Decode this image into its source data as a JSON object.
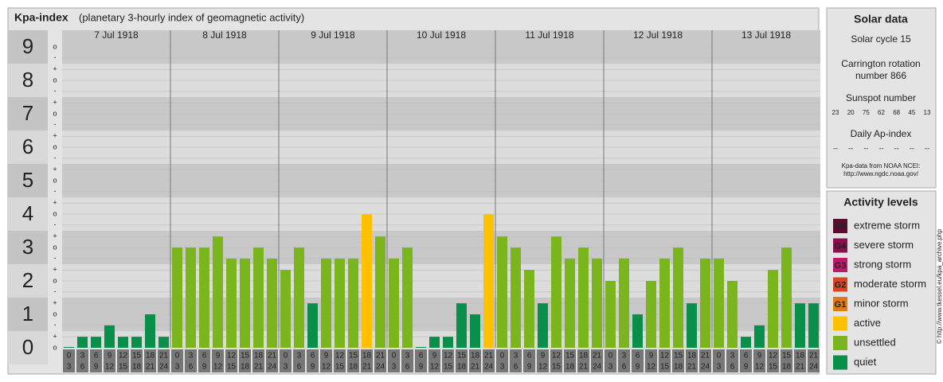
{
  "chart_data": {
    "type": "bar",
    "title": "Kpa-index",
    "subtitle": "(planetary 3-hourly index of geomagnetic activity)",
    "days": [
      "7 Jul 1918",
      "8 Jul 1918",
      "9 Jul 1918",
      "10 Jul 1918",
      "11 Jul 1918",
      "12 Jul 1918",
      "13 Jul 1918"
    ],
    "slots": [
      [
        0,
        3
      ],
      [
        3,
        6
      ],
      [
        6,
        9
      ],
      [
        9,
        12
      ],
      [
        12,
        15
      ],
      [
        15,
        18
      ],
      [
        18,
        21
      ],
      [
        21,
        24
      ]
    ],
    "values": [
      [
        0,
        0.33,
        0.33,
        0.67,
        0.33,
        0.33,
        1,
        0.33
      ],
      [
        3,
        3,
        3,
        3.33,
        2.67,
        2.67,
        3,
        2.67
      ],
      [
        2.33,
        3,
        1.33,
        2.67,
        2.67,
        2.67,
        4,
        3.33
      ],
      [
        2.67,
        3,
        0,
        0.33,
        0.33,
        1.33,
        1,
        4
      ],
      [
        3.33,
        3,
        2.33,
        1.33,
        3.33,
        2.67,
        3,
        2.67
      ],
      [
        2,
        2.67,
        1,
        2,
        2.67,
        3,
        1.33,
        2.67
      ],
      [
        2.67,
        2,
        0.33,
        0.67,
        2.33,
        3,
        1.33,
        1.33
      ]
    ],
    "colors": [
      [
        "#0a8f4a",
        "#0a8f4a",
        "#0a8f4a",
        "#0a8f4a",
        "#0a8f4a",
        "#0a8f4a",
        "#0a8f4a",
        "#0a8f4a"
      ],
      [
        "#7ab51d",
        "#7ab51d",
        "#7ab51d",
        "#7ab51d",
        "#7ab51d",
        "#7ab51d",
        "#7ab51d",
        "#7ab51d"
      ],
      [
        "#7ab51d",
        "#7ab51d",
        "#0a8f4a",
        "#7ab51d",
        "#7ab51d",
        "#7ab51d",
        "#ffc000",
        "#7ab51d"
      ],
      [
        "#7ab51d",
        "#7ab51d",
        "#0a8f4a",
        "#0a8f4a",
        "#0a8f4a",
        "#0a8f4a",
        "#0a8f4a",
        "#ffc000"
      ],
      [
        "#7ab51d",
        "#7ab51d",
        "#7ab51d",
        "#0a8f4a",
        "#7ab51d",
        "#7ab51d",
        "#7ab51d",
        "#7ab51d"
      ],
      [
        "#7ab51d",
        "#7ab51d",
        "#0a8f4a",
        "#7ab51d",
        "#7ab51d",
        "#7ab51d",
        "#0a8f4a",
        "#7ab51d"
      ],
      [
        "#7ab51d",
        "#7ab51d",
        "#0a8f4a",
        "#0a8f4a",
        "#7ab51d",
        "#7ab51d",
        "#0a8f4a",
        "#0a8f4a"
      ]
    ],
    "ylim": [
      0,
      9
    ],
    "yticks": [
      0,
      1,
      2,
      3,
      4,
      5,
      6,
      7,
      8,
      9
    ],
    "minor_ticks": [
      {
        "value": 0,
        "label": "o"
      },
      {
        "value": 0.33,
        "label": "+"
      },
      {
        "value": 0.67,
        "label": "-"
      },
      {
        "value": 1,
        "label": "o"
      },
      {
        "value": 1.33,
        "label": "+"
      },
      {
        "value": 1.67,
        "label": "-"
      },
      {
        "value": 2,
        "label": "o"
      },
      {
        "value": 2.33,
        "label": "+"
      },
      {
        "value": 2.67,
        "label": "-"
      },
      {
        "value": 3,
        "label": "o"
      },
      {
        "value": 3.33,
        "label": "+"
      },
      {
        "value": 3.67,
        "label": "-"
      },
      {
        "value": 4,
        "label": "o"
      },
      {
        "value": 4.33,
        "label": "+"
      },
      {
        "value": 4.67,
        "label": "-"
      },
      {
        "value": 5,
        "label": "o"
      },
      {
        "value": 5.33,
        "label": "+"
      },
      {
        "value": 5.67,
        "label": "-"
      },
      {
        "value": 6,
        "label": "o"
      },
      {
        "value": 6.33,
        "label": "+"
      },
      {
        "value": 6.67,
        "label": "-"
      },
      {
        "value": 7,
        "label": "o"
      },
      {
        "value": 7.33,
        "label": "+"
      },
      {
        "value": 7.67,
        "label": "-"
      },
      {
        "value": 8,
        "label": "o"
      },
      {
        "value": 8.33,
        "label": "+"
      },
      {
        "value": 8.67,
        "label": "-"
      },
      {
        "value": 9,
        "label": "o"
      }
    ],
    "solar": {
      "title": "Solar data",
      "cycle": "Solar cycle 15",
      "rotation": [
        "Carrington rotation",
        "number 866"
      ],
      "sunspot_title": "Sunspot number",
      "sunspots": [
        23,
        20,
        75,
        62,
        68,
        45,
        13
      ],
      "ap_title": "Daily Ap-index",
      "ap": [
        "--",
        "--",
        "--",
        "--",
        "--",
        "--",
        "--"
      ],
      "source": [
        "Kpa-data from NOAA NCEI:",
        "http://www.ngdc.noaa.gov/"
      ]
    },
    "legend": {
      "title": "Activity levels",
      "levels": [
        {
          "code": "G5",
          "name": "extreme storm",
          "color": "#5c0b2e"
        },
        {
          "code": "G4",
          "name": "severe storm",
          "color": "#8a1050"
        },
        {
          "code": "G3",
          "name": "strong storm",
          "color": "#c0186a"
        },
        {
          "code": "G2",
          "name": "moderate storm",
          "color": "#d9461e"
        },
        {
          "code": "G1",
          "name": "minor storm",
          "color": "#e07a12"
        },
        {
          "name": "active",
          "color": "#ffc000"
        },
        {
          "name": "unsettled",
          "color": "#7ab51d"
        },
        {
          "name": "quiet",
          "color": "#0a8f4a"
        }
      ]
    },
    "credit": "© http://www.tkessel.eu/kpa_archive.php"
  }
}
